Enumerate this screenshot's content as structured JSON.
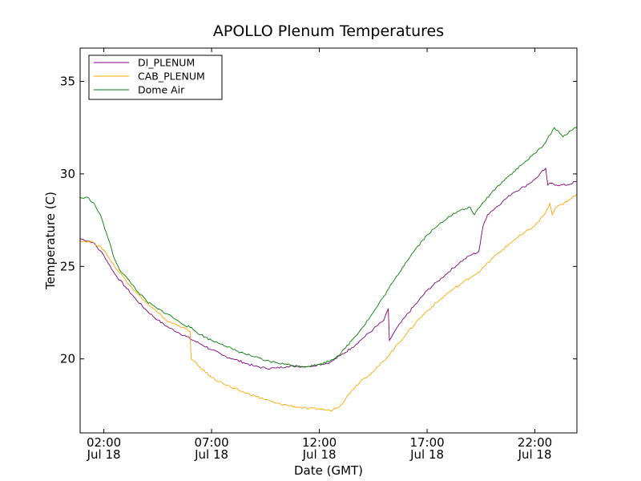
{
  "chart_data": {
    "type": "line",
    "title": "APOLLO Plenum Temperatures",
    "xlabel": "Date (GMT)",
    "ylabel": "Temperature (C)",
    "x_unit": "hours since Jul 18 00:00 GMT",
    "xlim": [
      0.9,
      23.95
    ],
    "ylim": [
      16.0,
      36.8
    ],
    "xticks": [
      {
        "value": 2,
        "time": "02:00",
        "date": "Jul 18"
      },
      {
        "value": 7,
        "time": "07:00",
        "date": "Jul 18"
      },
      {
        "value": 12,
        "time": "12:00",
        "date": "Jul 18"
      },
      {
        "value": 17,
        "time": "17:00",
        "date": "Jul 18"
      },
      {
        "value": 22,
        "time": "22:00",
        "date": "Jul 18"
      }
    ],
    "yticks": [
      20,
      25,
      30,
      35
    ],
    "legend_position": "top-left",
    "series": [
      {
        "name": "DI_PLENUM",
        "color": "#800080",
        "x": [
          0.9,
          1.5,
          2.0,
          2.5,
          3.0,
          3.5,
          4.0,
          4.5,
          5.0,
          5.5,
          6.0,
          6.5,
          7.0,
          7.5,
          8.0,
          8.5,
          9.0,
          9.5,
          10.0,
          10.5,
          11.0,
          11.5,
          12.0,
          12.5,
          13.0,
          13.5,
          14.0,
          14.5,
          15.0,
          15.2,
          15.25,
          15.5,
          16.0,
          16.5,
          17.0,
          17.5,
          18.0,
          18.5,
          19.0,
          19.4,
          19.6,
          19.8,
          20.0,
          20.5,
          21.0,
          21.5,
          22.0,
          22.5,
          22.6,
          22.8,
          23.0,
          23.5,
          23.95
        ],
        "y": [
          26.5,
          26.3,
          25.6,
          24.6,
          23.9,
          23.2,
          22.6,
          22.1,
          21.7,
          21.4,
          21.1,
          20.8,
          20.5,
          20.2,
          20.0,
          19.8,
          19.6,
          19.5,
          19.5,
          19.6,
          19.6,
          19.6,
          19.7,
          19.8,
          20.2,
          20.6,
          21.1,
          21.6,
          22.1,
          22.7,
          21.0,
          21.5,
          22.3,
          23.0,
          23.7,
          24.2,
          24.7,
          25.2,
          25.6,
          25.8,
          27.2,
          27.8,
          28.0,
          28.5,
          29.0,
          29.3,
          29.7,
          30.3,
          29.4,
          29.5,
          29.4,
          29.4,
          29.6
        ]
      },
      {
        "name": "CAB_PLENUM",
        "color": "#FFA500",
        "x": [
          0.9,
          1.5,
          2.0,
          2.5,
          3.0,
          3.5,
          4.0,
          4.5,
          5.0,
          5.5,
          6.0,
          6.05,
          6.5,
          7.0,
          7.5,
          8.0,
          8.5,
          9.0,
          9.5,
          10.0,
          10.5,
          11.0,
          11.5,
          12.0,
          12.5,
          13.0,
          13.5,
          14.0,
          14.5,
          15.0,
          15.5,
          16.0,
          16.5,
          17.0,
          17.5,
          18.0,
          18.5,
          19.0,
          19.5,
          20.0,
          20.5,
          21.0,
          21.5,
          22.0,
          22.5,
          22.7,
          22.8,
          23.0,
          23.5,
          23.95
        ],
        "y": [
          26.4,
          26.3,
          25.9,
          25.0,
          24.3,
          23.6,
          23.0,
          22.5,
          22.0,
          21.8,
          21.5,
          20.0,
          19.5,
          19.0,
          18.7,
          18.4,
          18.2,
          18.0,
          17.8,
          17.6,
          17.5,
          17.4,
          17.3,
          17.3,
          17.2,
          17.5,
          18.3,
          18.9,
          19.3,
          19.9,
          20.6,
          21.3,
          22.0,
          22.6,
          23.1,
          23.6,
          24.0,
          24.4,
          24.8,
          25.4,
          25.9,
          26.4,
          26.8,
          27.2,
          27.9,
          28.4,
          27.8,
          28.2,
          28.5,
          28.9
        ]
      },
      {
        "name": "Dome Air",
        "color": "#008000",
        "x": [
          0.9,
          1.3,
          1.6,
          1.9,
          2.2,
          2.5,
          2.8,
          3.2,
          3.6,
          4.0,
          4.5,
          5.0,
          5.5,
          6.0,
          6.5,
          7.0,
          7.5,
          8.0,
          8.5,
          9.0,
          9.5,
          10.0,
          10.5,
          11.0,
          11.5,
          12.0,
          12.5,
          13.0,
          13.5,
          14.0,
          14.5,
          15.0,
          15.5,
          16.0,
          16.5,
          17.0,
          17.5,
          18.0,
          18.5,
          19.0,
          19.2,
          19.5,
          20.0,
          20.5,
          21.0,
          21.5,
          22.0,
          22.5,
          22.9,
          23.1,
          23.3,
          23.6,
          23.95
        ],
        "y": [
          28.7,
          28.7,
          28.3,
          27.6,
          26.5,
          25.4,
          24.7,
          24.2,
          23.6,
          23.1,
          22.7,
          22.4,
          22.0,
          21.7,
          21.3,
          21.0,
          20.8,
          20.5,
          20.3,
          20.1,
          19.9,
          19.8,
          19.7,
          19.6,
          19.6,
          19.7,
          19.9,
          20.3,
          21.0,
          21.7,
          22.5,
          23.4,
          24.3,
          25.2,
          26.0,
          26.7,
          27.2,
          27.7,
          28.0,
          28.2,
          27.8,
          28.3,
          29.0,
          29.6,
          30.1,
          30.6,
          31.1,
          31.7,
          32.5,
          32.3,
          32.0,
          32.3,
          32.5
        ]
      }
    ]
  }
}
